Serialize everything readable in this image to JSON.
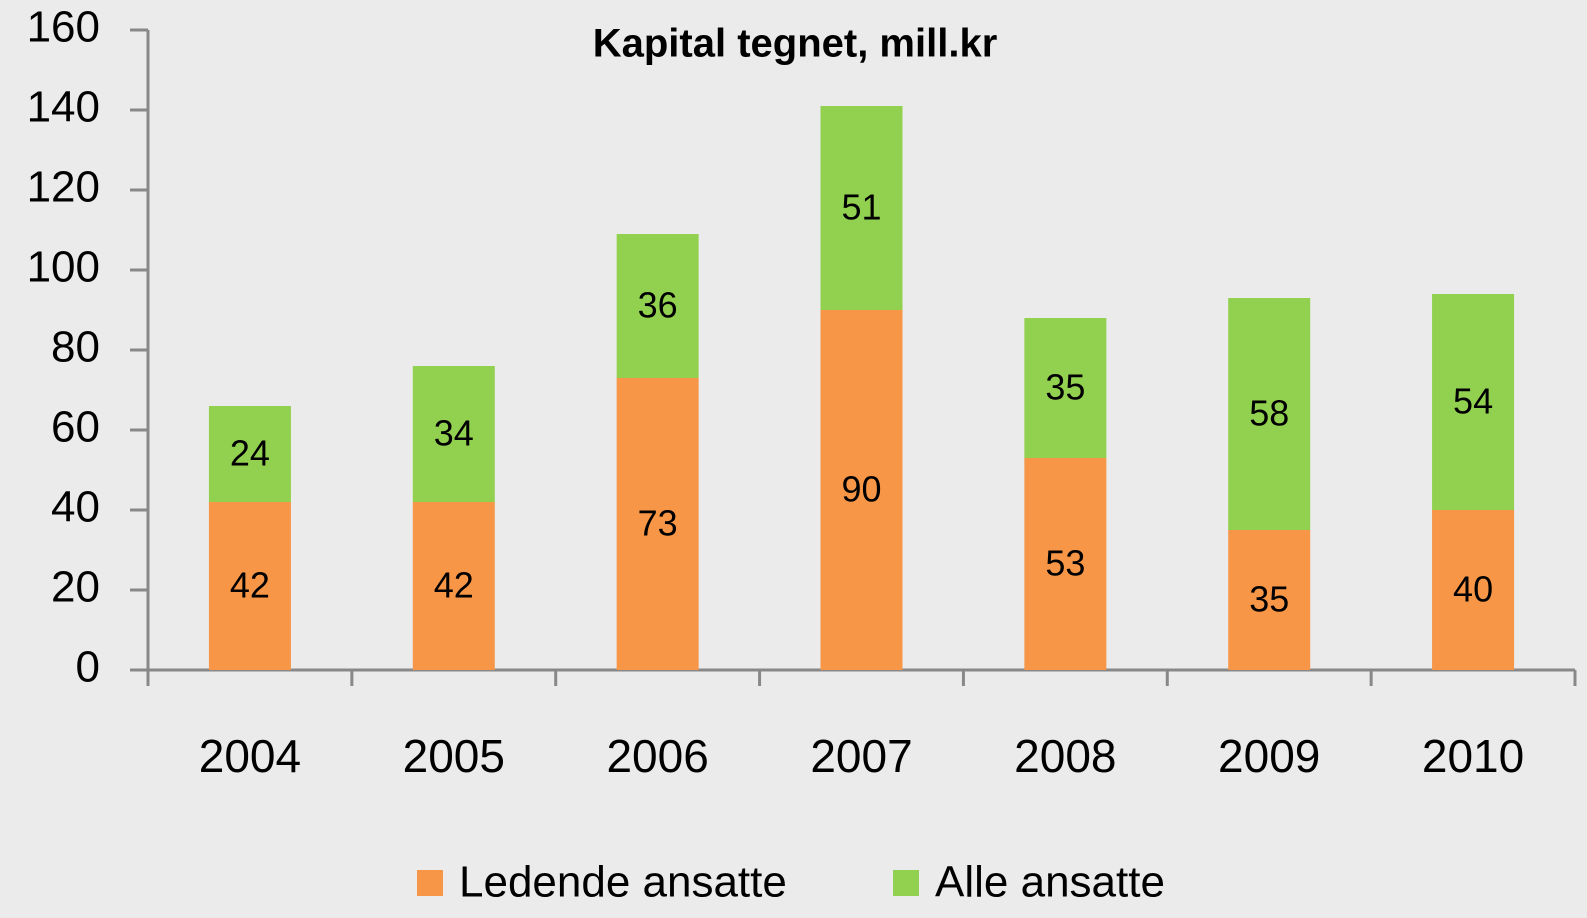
{
  "chart_data": {
    "type": "bar",
    "stacked": true,
    "title": "Kapital tegnet, mill.kr",
    "categories": [
      "2004",
      "2005",
      "2006",
      "2007",
      "2008",
      "2009",
      "2010"
    ],
    "series": [
      {
        "name": "Ledende ansatte",
        "color": "#f79646",
        "values": [
          42,
          42,
          73,
          90,
          53,
          35,
          40
        ]
      },
      {
        "name": "Alle ansatte",
        "color": "#92d050",
        "values": [
          24,
          34,
          36,
          51,
          35,
          58,
          54
        ]
      }
    ],
    "ylim": [
      0,
      160
    ],
    "yticks": [
      0,
      20,
      40,
      60,
      80,
      100,
      120,
      140,
      160
    ],
    "grid": false,
    "legend": "bottom"
  }
}
